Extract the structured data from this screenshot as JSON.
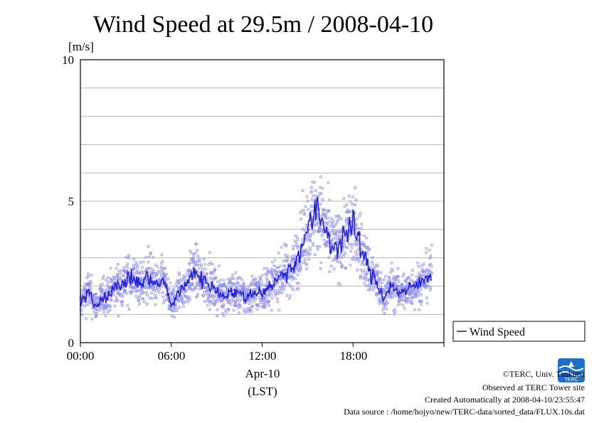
{
  "chart_data": {
    "type": "scatter",
    "title": "Wind Speed at 29.5m / 2008-04-10",
    "ylabel": "[m/s]",
    "xlabel_line1": "Apr-10",
    "xlabel_line2": "(LST)",
    "ylim": [
      0,
      10
    ],
    "xlim_hours": [
      0,
      23.2
    ],
    "x_tick_labels": [
      "00:00",
      "06:00",
      "12:00",
      "18:00"
    ],
    "y_tick_labels": [
      "0",
      "5",
      "10"
    ],
    "grid": true,
    "legend": {
      "label": "Wind Speed",
      "placement": "right"
    },
    "colors": {
      "points": "#8c8cf0",
      "line": "#1e1ee6"
    },
    "series": [
      {
        "name": "Wind Speed",
        "x_hours": [
          0.0,
          0.5,
          1.0,
          1.5,
          2.0,
          2.5,
          3.0,
          3.5,
          4.0,
          4.5,
          5.0,
          5.5,
          6.0,
          6.5,
          7.0,
          7.5,
          8.0,
          8.5,
          9.0,
          9.5,
          10.0,
          10.5,
          11.0,
          11.5,
          12.0,
          12.5,
          13.0,
          13.5,
          14.0,
          14.5,
          15.0,
          15.5,
          16.0,
          16.5,
          17.0,
          17.5,
          18.0,
          18.5,
          19.0,
          19.5,
          20.0,
          20.5,
          21.0,
          21.5,
          22.0,
          22.5,
          23.0
        ],
        "values": [
          1.3,
          1.9,
          1.3,
          1.6,
          1.8,
          2.0,
          2.2,
          2.3,
          2.0,
          2.4,
          2.0,
          2.2,
          1.3,
          1.8,
          2.0,
          2.6,
          2.2,
          2.1,
          1.8,
          1.7,
          1.8,
          1.7,
          1.6,
          1.8,
          1.8,
          2.0,
          2.2,
          2.5,
          2.6,
          3.3,
          4.0,
          4.6,
          4.3,
          3.5,
          3.4,
          3.9,
          4.1,
          3.4,
          2.6,
          2.2,
          1.6,
          2.0,
          1.8,
          1.8,
          2.0,
          2.1,
          2.4
        ]
      }
    ]
  },
  "footer": {
    "copyright": "©TERC, Univ. Tsukuba",
    "observed": "Observed at TERC Tower site",
    "created": "Created Automatically at 2008-04-10/23:55:47",
    "source": "Data source : /home/hojyo/new/TERC-data/sorted_data/FLUX.10s.dat",
    "logo_text": "TERC"
  }
}
